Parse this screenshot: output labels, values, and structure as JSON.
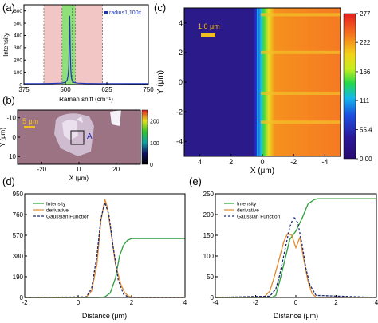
{
  "chart_data": [
    {
      "panel_label": "(a)",
      "type": "line",
      "xlabel": "Raman shift (cm⁻¹)",
      "ylabel": "Intensity",
      "xticks": [
        "375",
        "500",
        "625",
        "750"
      ],
      "yticks": [
        "0",
        "100",
        "200",
        "300",
        "400",
        "500",
        "600"
      ],
      "xlim": [
        375,
        750
      ],
      "ylim": [
        0,
        650
      ],
      "legend": "radius1,100x",
      "legend_position": "top-right",
      "bands": [
        {
          "x0": 435,
          "x1": 490,
          "color": "#f3c6c6"
        },
        {
          "x0": 490,
          "x1": 530,
          "color": "#8fe07a"
        },
        {
          "x0": 530,
          "x1": 612,
          "color": "#f3c6c6"
        }
      ],
      "vlines": [
        435,
        490,
        520,
        530,
        612
      ],
      "series": [
        {
          "name": "radius1,100x",
          "color": "#1f35b8",
          "x": [
            375,
            420,
            460,
            490,
            500,
            505,
            508,
            510,
            511,
            512,
            513,
            514,
            515,
            516,
            518,
            520,
            525,
            535,
            560,
            600,
            650,
            700,
            750
          ],
          "y": [
            8,
            8,
            9,
            12,
            18,
            35,
            70,
            140,
            260,
            420,
            560,
            430,
            260,
            130,
            60,
            35,
            18,
            12,
            9,
            8,
            8,
            7,
            7
          ]
        }
      ]
    },
    {
      "panel_label": "(b)",
      "type": "heatmap",
      "xlabel": "X (μm)",
      "ylabel": "Y (μm)",
      "xticks": [
        "-20",
        "0",
        "20"
      ],
      "yticks": [
        "-10",
        "0",
        "10"
      ],
      "xlim": [
        -33,
        33
      ],
      "ylim": [
        -14,
        14
      ],
      "scalebar": "5 μm",
      "annotation": "A",
      "colorbar_ticks": [
        "200",
        "100",
        "0"
      ],
      "colorbar_range": [
        0,
        250
      ]
    },
    {
      "panel_label": "(c)",
      "type": "heatmap",
      "xlabel": "X (μm)",
      "ylabel": "Y (μm)",
      "xticks": [
        "4",
        "2",
        "0",
        "-2",
        "-4"
      ],
      "yticks": [
        "4",
        "2",
        "0",
        "-2",
        "-4"
      ],
      "xlim": [
        5,
        -5
      ],
      "ylim": [
        -5,
        5
      ],
      "scalebar": "1.0 μm",
      "boundary_x": 0.3,
      "colorbar_ticks": [
        "277",
        "222",
        "166",
        "111",
        "55.4",
        "0.00"
      ],
      "colorbar_range": [
        0,
        277
      ]
    },
    {
      "panel_label": "(d)",
      "type": "line",
      "xlabel": "Distance (μm)",
      "xticks": [
        "-2",
        "0",
        "2",
        "4"
      ],
      "yticks": [
        "0",
        "190",
        "380",
        "570",
        "760",
        "950"
      ],
      "xlim": [
        -2,
        4
      ],
      "ylim": [
        0,
        950
      ],
      "legend_position": "top-left",
      "series": [
        {
          "name": "Intensity",
          "color": "#2f9e3a",
          "style": "solid",
          "x": [
            -2,
            0.8,
            1.0,
            1.2,
            1.4,
            1.55,
            1.7,
            1.85,
            2.0,
            2.5,
            3,
            4
          ],
          "y": [
            0,
            0,
            5,
            40,
            180,
            380,
            480,
            525,
            540,
            540,
            540,
            540
          ]
        },
        {
          "name": "derivative",
          "color": "#e08a2c",
          "style": "solid",
          "x": [
            -2,
            0.3,
            0.5,
            0.7,
            0.85,
            1.0,
            1.1,
            1.25,
            1.4,
            1.6,
            1.75,
            1.9,
            2.1,
            4
          ],
          "y": [
            0,
            0,
            60,
            300,
            700,
            900,
            820,
            560,
            300,
            120,
            40,
            10,
            0,
            0
          ]
        },
        {
          "name": "Gaussian Function",
          "color": "#1a2a7a",
          "style": "dashed",
          "x": [
            -2,
            0.3,
            0.5,
            0.7,
            0.85,
            1.0,
            1.15,
            1.3,
            1.5,
            1.7,
            1.9,
            4
          ],
          "y": [
            0,
            5,
            80,
            380,
            720,
            870,
            760,
            480,
            160,
            30,
            0,
            0
          ]
        }
      ]
    },
    {
      "panel_label": "(e)",
      "type": "line",
      "xlabel": "Distance (μm)",
      "xticks": [
        "-4",
        "-2",
        "0",
        "2",
        "4"
      ],
      "yticks": [
        "0",
        "50",
        "100",
        "150",
        "200",
        "250"
      ],
      "xlim": [
        -4,
        4
      ],
      "ylim": [
        0,
        250
      ],
      "legend_position": "top-left",
      "series": [
        {
          "name": "Intensity",
          "color": "#2f9e3a",
          "style": "solid",
          "x": [
            -4,
            -1.2,
            -1.0,
            -0.8,
            -0.5,
            -0.3,
            0,
            0.3,
            0.6,
            0.9,
            1.1,
            1.5,
            4
          ],
          "y": [
            0,
            0,
            5,
            40,
            100,
            140,
            160,
            190,
            225,
            236,
            238,
            238,
            238
          ]
        },
        {
          "name": "derivative",
          "color": "#e08a2c",
          "style": "solid",
          "x": [
            -4,
            -1.6,
            -1.3,
            -1.1,
            -0.9,
            -0.6,
            -0.4,
            -0.2,
            0.0,
            0.2,
            0.4,
            0.6,
            0.8,
            1.0,
            4
          ],
          "y": [
            0,
            0,
            15,
            45,
            80,
            135,
            155,
            150,
            120,
            145,
            90,
            40,
            10,
            0,
            0
          ]
        },
        {
          "name": "Gaussian Function",
          "color": "#1a2a7a",
          "style": "dashed",
          "x": [
            -4,
            -1.3,
            -1.0,
            -0.8,
            -0.5,
            -0.3,
            -0.1,
            0.1,
            0.3,
            0.5,
            0.7,
            1.0,
            4
          ],
          "y": [
            0,
            3,
            20,
            55,
            125,
            170,
            195,
            180,
            130,
            70,
            30,
            5,
            0
          ]
        }
      ]
    }
  ]
}
